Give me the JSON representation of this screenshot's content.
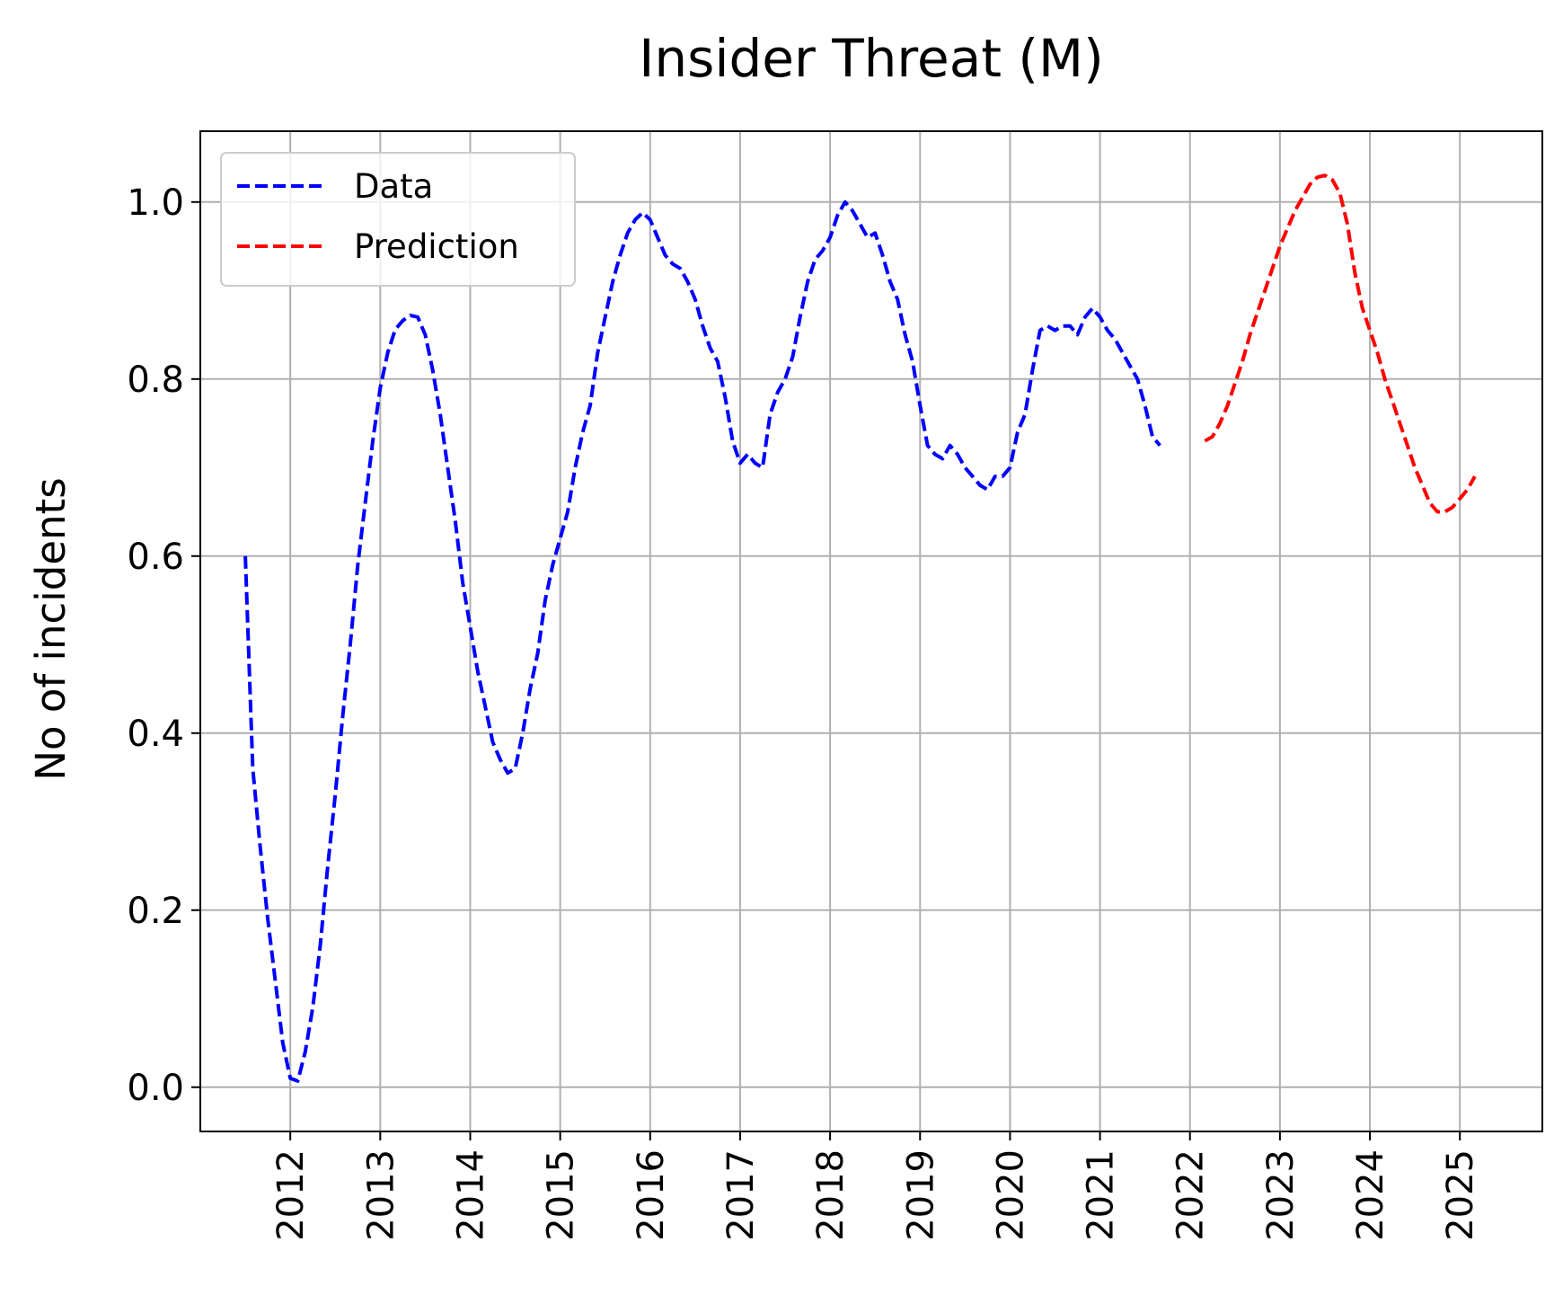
{
  "chart_data": {
    "type": "line",
    "title": "Insider Threat (M)",
    "xlabel": "",
    "ylabel": "No of incidents",
    "xlim": [
      "2011-01",
      "2025-12"
    ],
    "ylim": [
      -0.05,
      1.08
    ],
    "x_ticks": [
      "2012",
      "2013",
      "2014",
      "2015",
      "2016",
      "2017",
      "2018",
      "2019",
      "2020",
      "2021",
      "2022",
      "2023",
      "2024",
      "2025"
    ],
    "y_ticks": [
      "0.0",
      "0.2",
      "0.4",
      "0.6",
      "0.8",
      "1.0"
    ],
    "grid": true,
    "legend_position": "top-left",
    "series": [
      {
        "name": "Data",
        "color": "#0000ff",
        "linestyle": "dashed",
        "points": [
          [
            "2011-07",
            0.6
          ],
          [
            "2011-08",
            0.36
          ],
          [
            "2011-09",
            0.27
          ],
          [
            "2011-10",
            0.19
          ],
          [
            "2011-11",
            0.12
          ],
          [
            "2011-12",
            0.05
          ],
          [
            "2012-01",
            0.01
          ],
          [
            "2012-02",
            0.007
          ],
          [
            "2012-03",
            0.04
          ],
          [
            "2012-04",
            0.09
          ],
          [
            "2012-05",
            0.16
          ],
          [
            "2012-06",
            0.25
          ],
          [
            "2012-07",
            0.33
          ],
          [
            "2012-08",
            0.42
          ],
          [
            "2012-09",
            0.5
          ],
          [
            "2012-10",
            0.59
          ],
          [
            "2012-11",
            0.66
          ],
          [
            "2012-12",
            0.73
          ],
          [
            "2013-01",
            0.79
          ],
          [
            "2013-02",
            0.83
          ],
          [
            "2013-03",
            0.856
          ],
          [
            "2013-04",
            0.866
          ],
          [
            "2013-05",
            0.872
          ],
          [
            "2013-06",
            0.87
          ],
          [
            "2013-07",
            0.85
          ],
          [
            "2013-08",
            0.81
          ],
          [
            "2013-09",
            0.76
          ],
          [
            "2013-10",
            0.7
          ],
          [
            "2013-11",
            0.64
          ],
          [
            "2013-12",
            0.57
          ],
          [
            "2014-01",
            0.52
          ],
          [
            "2014-02",
            0.47
          ],
          [
            "2014-03",
            0.43
          ],
          [
            "2014-04",
            0.39
          ],
          [
            "2014-05",
            0.37
          ],
          [
            "2014-06",
            0.355
          ],
          [
            "2014-07",
            0.36
          ],
          [
            "2014-08",
            0.4
          ],
          [
            "2014-09",
            0.45
          ],
          [
            "2014-10",
            0.49
          ],
          [
            "2014-11",
            0.55
          ],
          [
            "2014-12",
            0.59
          ],
          [
            "2015-01",
            0.62
          ],
          [
            "2015-02",
            0.65
          ],
          [
            "2015-03",
            0.7
          ],
          [
            "2015-04",
            0.74
          ],
          [
            "2015-05",
            0.77
          ],
          [
            "2015-06",
            0.83
          ],
          [
            "2015-07",
            0.87
          ],
          [
            "2015-08",
            0.91
          ],
          [
            "2015-09",
            0.94
          ],
          [
            "2015-10",
            0.965
          ],
          [
            "2015-11",
            0.98
          ],
          [
            "2015-12",
            0.988
          ],
          [
            "2016-01",
            0.98
          ],
          [
            "2016-02",
            0.96
          ],
          [
            "2016-03",
            0.94
          ],
          [
            "2016-04",
            0.93
          ],
          [
            "2016-05",
            0.925
          ],
          [
            "2016-06",
            0.91
          ],
          [
            "2016-07",
            0.89
          ],
          [
            "2016-08",
            0.86
          ],
          [
            "2016-09",
            0.835
          ],
          [
            "2016-10",
            0.82
          ],
          [
            "2016-11",
            0.78
          ],
          [
            "2016-12",
            0.73
          ],
          [
            "2017-01",
            0.705
          ],
          [
            "2017-02",
            0.715
          ],
          [
            "2017-03",
            0.705
          ],
          [
            "2017-04",
            0.7
          ],
          [
            "2017-05",
            0.76
          ],
          [
            "2017-06",
            0.785
          ],
          [
            "2017-07",
            0.8
          ],
          [
            "2017-08",
            0.825
          ],
          [
            "2017-09",
            0.87
          ],
          [
            "2017-10",
            0.91
          ],
          [
            "2017-11",
            0.935
          ],
          [
            "2017-12",
            0.945
          ],
          [
            "2018-01",
            0.96
          ],
          [
            "2018-02",
            0.985
          ],
          [
            "2018-03",
            1.0
          ],
          [
            "2018-04",
            0.99
          ],
          [
            "2018-05",
            0.975
          ],
          [
            "2018-06",
            0.96
          ],
          [
            "2018-07",
            0.965
          ],
          [
            "2018-08",
            0.94
          ],
          [
            "2018-09",
            0.91
          ],
          [
            "2018-10",
            0.89
          ],
          [
            "2018-11",
            0.85
          ],
          [
            "2018-12",
            0.82
          ],
          [
            "2019-01",
            0.77
          ],
          [
            "2019-02",
            0.725
          ],
          [
            "2019-03",
            0.715
          ],
          [
            "2019-04",
            0.71
          ],
          [
            "2019-05",
            0.725
          ],
          [
            "2019-06",
            0.715
          ],
          [
            "2019-07",
            0.7
          ],
          [
            "2019-08",
            0.69
          ],
          [
            "2019-09",
            0.68
          ],
          [
            "2019-10",
            0.675
          ],
          [
            "2019-11",
            0.69
          ],
          [
            "2019-12",
            0.69
          ],
          [
            "2020-01",
            0.7
          ],
          [
            "2020-02",
            0.74
          ],
          [
            "2020-03",
            0.76
          ],
          [
            "2020-04",
            0.81
          ],
          [
            "2020-05",
            0.855
          ],
          [
            "2020-06",
            0.86
          ],
          [
            "2020-07",
            0.855
          ],
          [
            "2020-08",
            0.86
          ],
          [
            "2020-09",
            0.86
          ],
          [
            "2020-10",
            0.85
          ],
          [
            "2020-11",
            0.87
          ],
          [
            "2020-12",
            0.88
          ],
          [
            "2021-01",
            0.87
          ],
          [
            "2021-02",
            0.855
          ],
          [
            "2021-03",
            0.845
          ],
          [
            "2021-04",
            0.83
          ],
          [
            "2021-05",
            0.815
          ],
          [
            "2021-06",
            0.8
          ],
          [
            "2021-07",
            0.77
          ],
          [
            "2021-08",
            0.735
          ],
          [
            "2021-09",
            0.725
          ]
        ]
      },
      {
        "name": "Prediction",
        "color": "#ff0000",
        "linestyle": "dashed",
        "points": [
          [
            "2022-03",
            0.73
          ],
          [
            "2022-04",
            0.735
          ],
          [
            "2022-05",
            0.75
          ],
          [
            "2022-06",
            0.77
          ],
          [
            "2022-07",
            0.795
          ],
          [
            "2022-08",
            0.82
          ],
          [
            "2022-09",
            0.85
          ],
          [
            "2022-10",
            0.875
          ],
          [
            "2022-11",
            0.9
          ],
          [
            "2022-12",
            0.925
          ],
          [
            "2023-01",
            0.95
          ],
          [
            "2023-02",
            0.97
          ],
          [
            "2023-03",
            0.99
          ],
          [
            "2023-04",
            1.005
          ],
          [
            "2023-05",
            1.02
          ],
          [
            "2023-06",
            1.028
          ],
          [
            "2023-07",
            1.03
          ],
          [
            "2023-08",
            1.025
          ],
          [
            "2023-09",
            1.01
          ],
          [
            "2023-10",
            0.975
          ],
          [
            "2023-11",
            0.92
          ],
          [
            "2023-12",
            0.88
          ],
          [
            "2024-01",
            0.855
          ],
          [
            "2024-02",
            0.83
          ],
          [
            "2024-03",
            0.8
          ],
          [
            "2024-04",
            0.775
          ],
          [
            "2024-05",
            0.75
          ],
          [
            "2024-06",
            0.725
          ],
          [
            "2024-07",
            0.7
          ],
          [
            "2024-08",
            0.68
          ],
          [
            "2024-09",
            0.66
          ],
          [
            "2024-10",
            0.65
          ],
          [
            "2024-11",
            0.65
          ],
          [
            "2024-12",
            0.655
          ],
          [
            "2025-01",
            0.665
          ],
          [
            "2025-02",
            0.675
          ],
          [
            "2025-03",
            0.69
          ]
        ]
      }
    ]
  }
}
